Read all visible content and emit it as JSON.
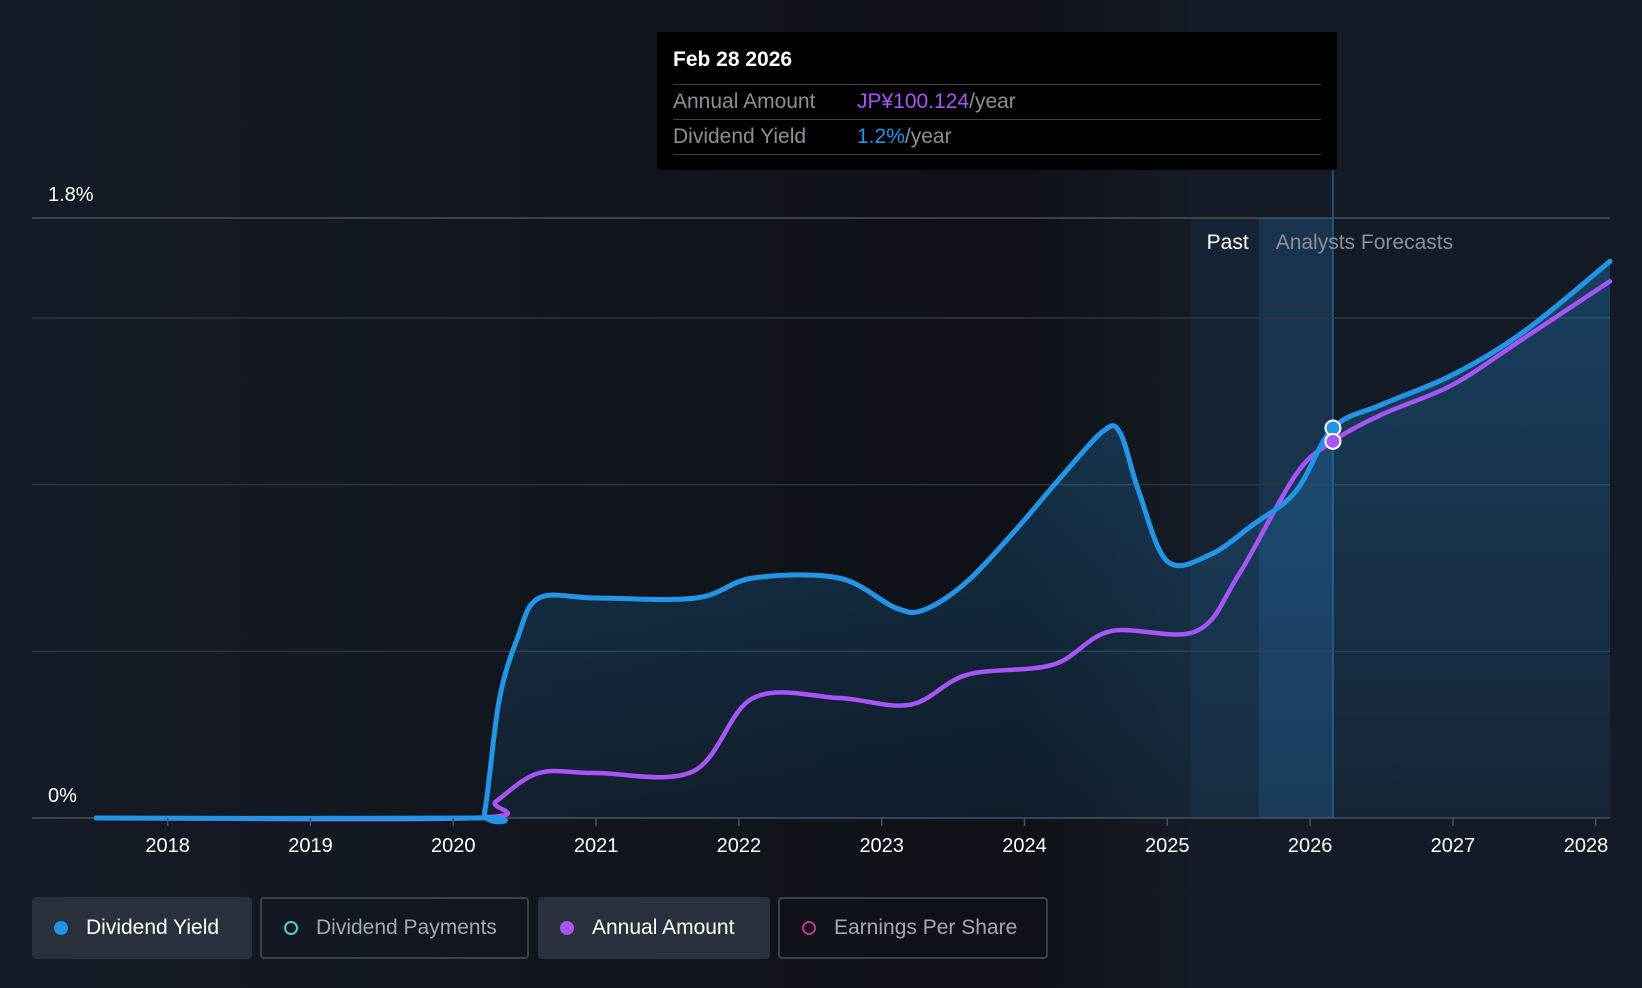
{
  "colors": {
    "background": "#151b26",
    "yield": "#2394e6",
    "annual": "#a855f7",
    "payments": "#4fd1c5",
    "eps": "#c0397a",
    "grid": "#2e3440"
  },
  "tooltip": {
    "date": "Feb 28 2026",
    "annual_label": "Annual Amount",
    "annual_value": "JP¥100.124",
    "annual_unit": "/year",
    "yield_label": "Dividend Yield",
    "yield_value": "1.2%",
    "yield_unit": "/year"
  },
  "regions": {
    "past_label": "Past",
    "forecast_label": "Analysts Forecasts"
  },
  "legend": [
    {
      "label": "Dividend Yield",
      "active": true,
      "icon": "filled-dot-icon"
    },
    {
      "label": "Dividend Payments",
      "active": false,
      "icon": "hollow-dot-icon"
    },
    {
      "label": "Annual Amount",
      "active": true,
      "icon": "filled-dot-icon"
    },
    {
      "label": "Earnings Per Share",
      "active": false,
      "icon": "hollow-dot-icon"
    }
  ],
  "chart_data": {
    "type": "line",
    "x_ticks": [
      "2018",
      "2019",
      "2020",
      "2021",
      "2022",
      "2023",
      "2024",
      "2025",
      "2026",
      "2027",
      "2028"
    ],
    "y_tick_labels": [
      "0%",
      "1.8%"
    ],
    "ylim": [
      0,
      1.8
    ],
    "xlim": [
      2017.05,
      2028.1
    ],
    "past_start": 2025.16,
    "forecast_start": 2025.64,
    "highlight_x": 2026.16,
    "series": [
      {
        "name": "Dividend Yield",
        "unit": "%",
        "points": [
          [
            2017.5,
            0
          ],
          [
            2020.15,
            0
          ],
          [
            2020.22,
            0.02
          ],
          [
            2020.32,
            0.35
          ],
          [
            2020.45,
            0.54
          ],
          [
            2020.6,
            0.66
          ],
          [
            2021.0,
            0.66
          ],
          [
            2021.7,
            0.66
          ],
          [
            2022.1,
            0.72
          ],
          [
            2022.7,
            0.72
          ],
          [
            2023.1,
            0.63
          ],
          [
            2023.3,
            0.625
          ],
          [
            2023.6,
            0.71
          ],
          [
            2023.95,
            0.87
          ],
          [
            2024.25,
            1.02
          ],
          [
            2024.55,
            1.16
          ],
          [
            2024.67,
            1.155
          ],
          [
            2024.8,
            0.98
          ],
          [
            2025.0,
            0.77
          ],
          [
            2025.3,
            0.79
          ],
          [
            2025.6,
            0.88
          ],
          [
            2025.9,
            0.98
          ],
          [
            2026.16,
            1.17
          ],
          [
            2026.5,
            1.24
          ],
          [
            2027.0,
            1.33
          ],
          [
            2027.5,
            1.46
          ],
          [
            2028.1,
            1.67
          ]
        ]
      },
      {
        "name": "Annual Amount",
        "unit": "index",
        "points": [
          [
            2017.5,
            0
          ],
          [
            2020.15,
            0
          ],
          [
            2020.3,
            0.05
          ],
          [
            2020.6,
            0.135
          ],
          [
            2021.0,
            0.135
          ],
          [
            2021.68,
            0.14
          ],
          [
            2022.1,
            0.36
          ],
          [
            2022.7,
            0.36
          ],
          [
            2023.2,
            0.34
          ],
          [
            2023.6,
            0.43
          ],
          [
            2024.2,
            0.46
          ],
          [
            2024.6,
            0.56
          ],
          [
            2025.2,
            0.56
          ],
          [
            2025.5,
            0.73
          ],
          [
            2025.9,
            1.03
          ],
          [
            2026.16,
            1.13
          ],
          [
            2026.5,
            1.21
          ],
          [
            2027.0,
            1.3
          ],
          [
            2027.5,
            1.44
          ],
          [
            2028.1,
            1.61
          ]
        ]
      }
    ]
  }
}
